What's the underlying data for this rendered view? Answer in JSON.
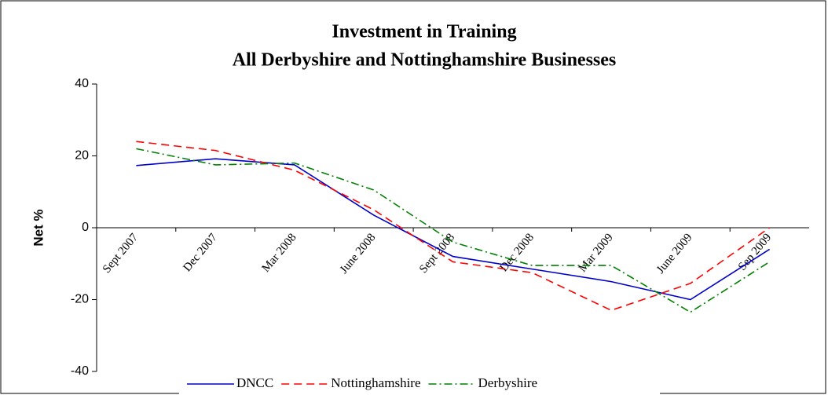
{
  "chart_data": {
    "type": "line",
    "title": "Investment in Training",
    "subtitle": "All Derbyshire and Nottinghamshire Businesses",
    "y_label": "Net %",
    "categories": [
      "Sept 2007",
      "Dec 2007",
      "Mar 2008",
      "June 2008",
      "Sept 2008",
      "Dec 2008",
      "Mar 2009",
      "June 2009",
      "Sep 2009"
    ],
    "series": [
      {
        "name": "DNCC",
        "color": "#0000cc",
        "values": [
          17.3,
          19.2,
          17.5,
          3.5,
          -8,
          -11.5,
          -15,
          -20,
          -6
        ]
      },
      {
        "name": "Nottinghamshire",
        "color": "#ff0000",
        "values": [
          24,
          21.5,
          16,
          5,
          -9.5,
          -12.5,
          -23,
          -15.5,
          0
        ]
      },
      {
        "name": "Derbyshire",
        "color": "#008000",
        "values": [
          22,
          17.5,
          18,
          10.5,
          -4,
          -10.5,
          -10.5,
          -23.5,
          -9.5
        ]
      }
    ],
    "ylim": [
      -40,
      40
    ],
    "yticks": [
      -40,
      -20,
      0,
      20,
      40
    ],
    "grid": false,
    "legend": "bottom"
  }
}
